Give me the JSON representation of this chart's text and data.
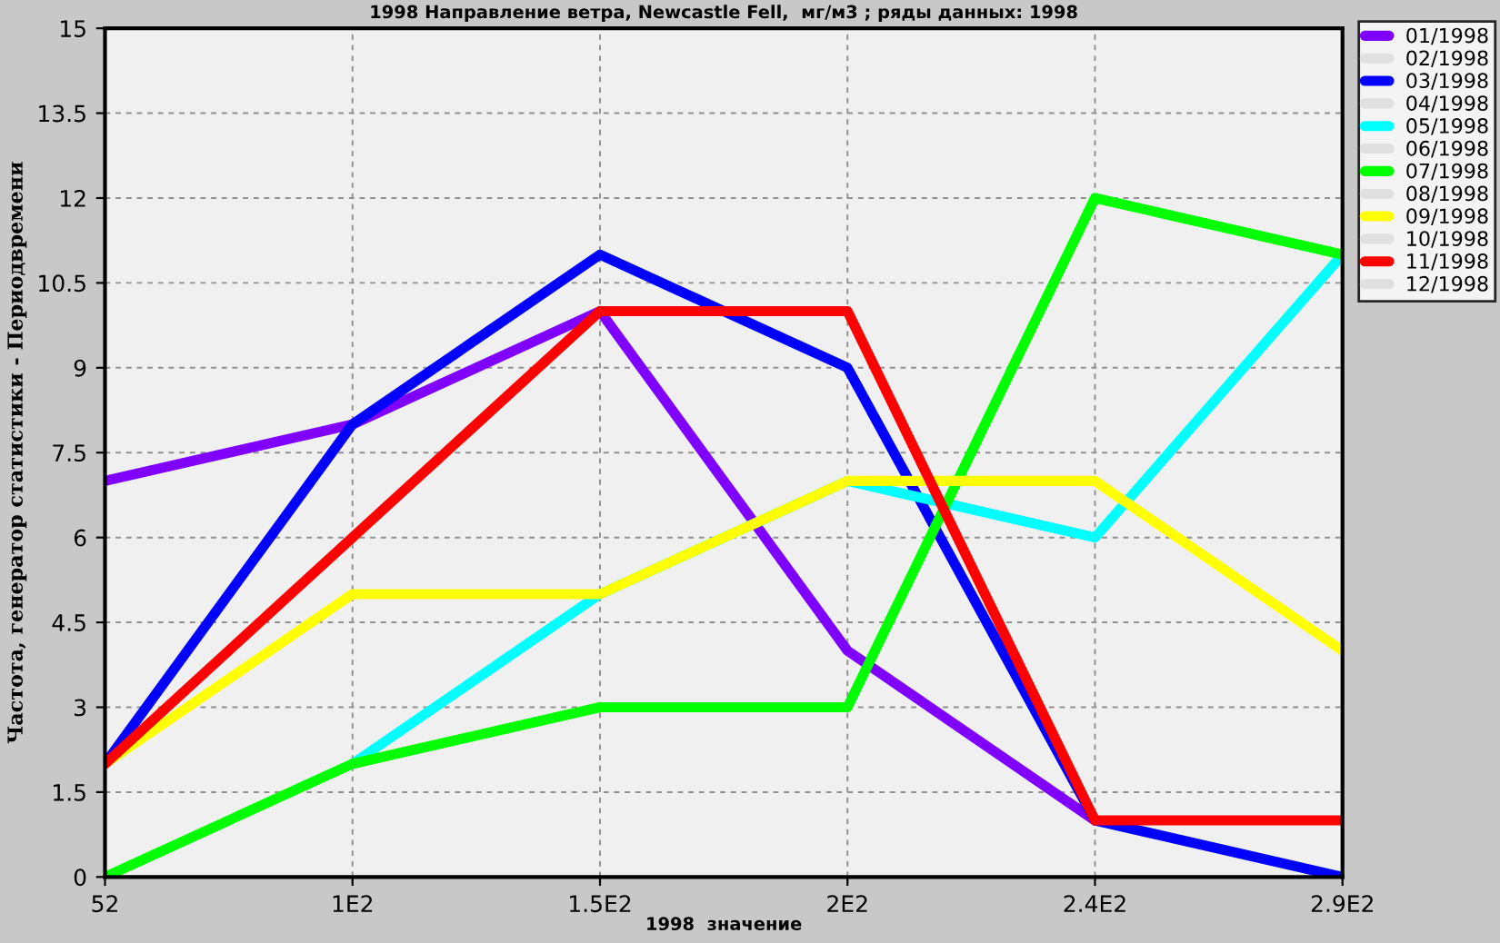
{
  "chart_data": {
    "type": "line",
    "title": "1998 Направление ветра, Newcastle Fell,  мг/м3 ; ряды данных: 1998",
    "xlabel": "1998  значение",
    "ylabel": "Частота, генератор статистики - Периодвремени",
    "categories": [
      "52",
      "1E2",
      "1.5E2",
      "2E2",
      "2.4E2",
      "2.9E2"
    ],
    "ylim": [
      0,
      15
    ],
    "yticks": [
      0,
      1.5,
      3,
      4.5,
      6,
      7.5,
      9,
      10.5,
      12,
      13.5,
      15
    ],
    "grid": true,
    "legend": "right",
    "marker": "none",
    "line_style": "solid",
    "series": [
      {
        "name": "01/1998",
        "color": "#8000ff",
        "values": [
          7,
          8,
          10,
          4,
          1,
          null
        ]
      },
      {
        "name": "02/1998",
        "color": "#e0e0e0",
        "values": [
          null,
          null,
          null,
          null,
          null,
          null
        ]
      },
      {
        "name": "03/1998",
        "color": "#0000ff",
        "values": [
          2,
          8,
          11,
          9,
          1,
          0
        ]
      },
      {
        "name": "04/1998",
        "color": "#e0e0e0",
        "values": [
          null,
          null,
          null,
          null,
          null,
          null
        ]
      },
      {
        "name": "05/1998",
        "color": "#00ffff",
        "values": [
          null,
          2,
          5,
          7,
          6,
          11
        ]
      },
      {
        "name": "06/1998",
        "color": "#e0e0e0",
        "values": [
          null,
          null,
          null,
          null,
          null,
          null
        ]
      },
      {
        "name": "07/1998",
        "color": "#00ff00",
        "values": [
          0,
          2,
          3,
          3,
          12,
          11
        ]
      },
      {
        "name": "08/1998",
        "color": "#e0e0e0",
        "values": [
          null,
          null,
          null,
          null,
          null,
          null
        ]
      },
      {
        "name": "09/1998",
        "color": "#ffff00",
        "values": [
          2,
          5,
          5,
          7,
          7,
          4
        ]
      },
      {
        "name": "10/1998",
        "color": "#e0e0e0",
        "values": [
          null,
          null,
          null,
          null,
          null,
          null
        ]
      },
      {
        "name": "11/1998",
        "color": "#ff0000",
        "values": [
          2,
          6,
          10,
          10,
          1,
          1
        ]
      },
      {
        "name": "12/1998",
        "color": "#e0e0e0",
        "values": [
          null,
          null,
          null,
          null,
          null,
          null
        ]
      }
    ]
  }
}
